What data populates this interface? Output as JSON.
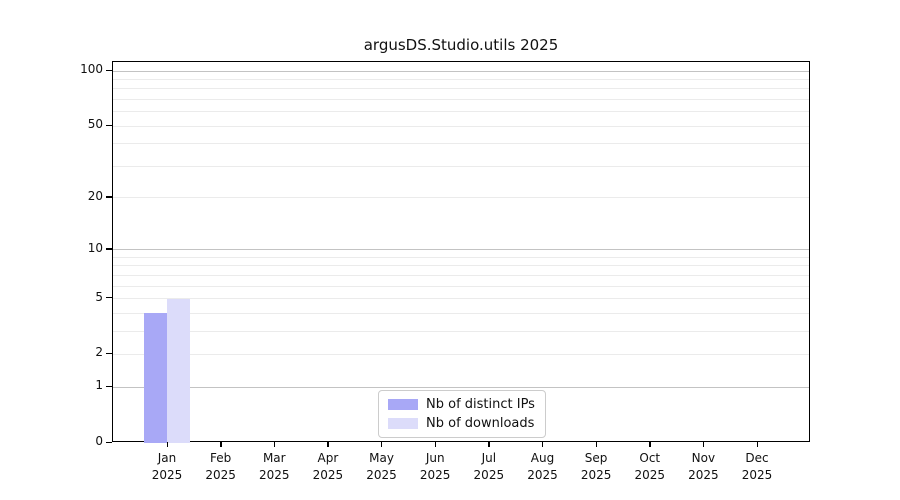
{
  "figure": {
    "background": "#ffffff"
  },
  "chart_data": {
    "type": "bar",
    "title": "argusDS.Studio.utils 2025",
    "categories": [
      "Jan 2025",
      "Feb 2025",
      "Mar 2025",
      "Apr 2025",
      "May 2025",
      "Jun 2025",
      "Jul 2025",
      "Aug 2025",
      "Sep 2025",
      "Oct 2025",
      "Nov 2025",
      "Dec 2025"
    ],
    "series": [
      {
        "name": "Nb of distinct IPs",
        "color": "#a8a8f6",
        "values": [
          4,
          0,
          0,
          0,
          0,
          0,
          0,
          0,
          0,
          0,
          0,
          0
        ]
      },
      {
        "name": "Nb of downloads",
        "color": "#dcdcfa",
        "values": [
          5,
          0,
          0,
          0,
          0,
          0,
          0,
          0,
          0,
          0,
          0,
          0
        ]
      }
    ],
    "xlabel": "",
    "ylabel": "",
    "y_scale": "log1p",
    "ylim": [
      0,
      112
    ],
    "y_ticks": [
      0,
      1,
      2,
      5,
      10,
      20,
      50,
      100
    ],
    "y_major_gridlines": [
      1,
      10,
      100
    ],
    "y_minor_gridlines": [
      2,
      3,
      4,
      5,
      6,
      7,
      8,
      9,
      20,
      30,
      40,
      50,
      60,
      70,
      80,
      90
    ],
    "grid": "horizontal",
    "legend_position": "lower center inside plot"
  },
  "colors": {
    "axis": "#000000",
    "grid_major": "#c3c3c3",
    "grid_minor": "#ebebeb",
    "legend_border": "#cccccc",
    "text": "#111111"
  }
}
